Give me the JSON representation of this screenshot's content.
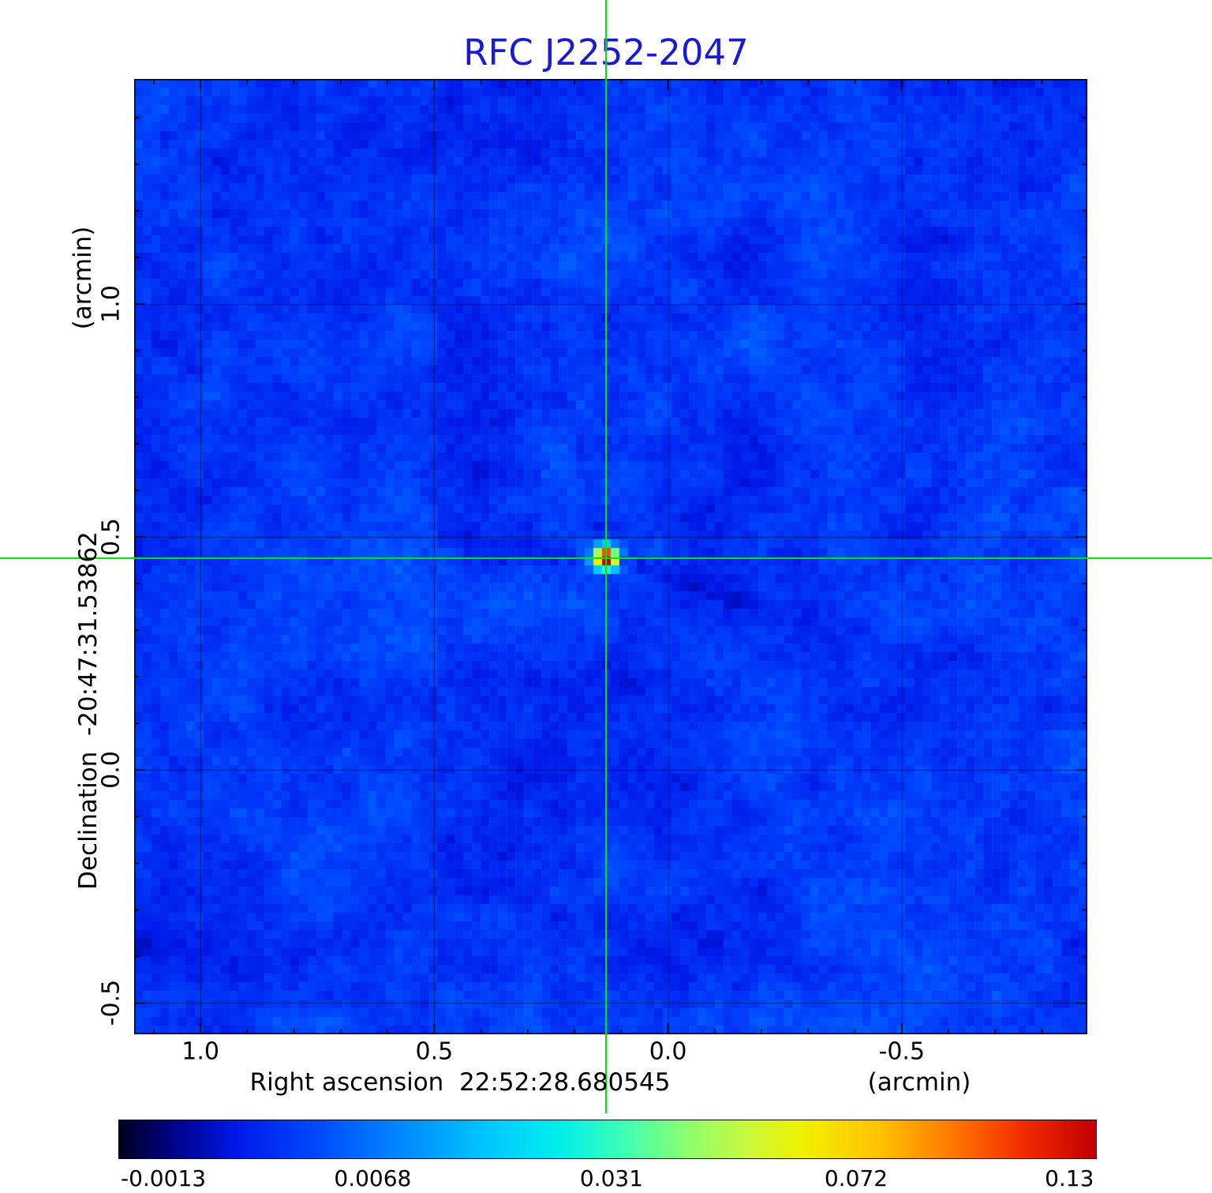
{
  "colors": {
    "title": "#1a1ad2",
    "crosshair": "#00e400",
    "grid": "rgba(0,0,0,0.5)",
    "background": "#ffffff"
  },
  "chart_data": {
    "type": "heatmap",
    "title": "RFC J2252-2047",
    "x_axis": {
      "title": "Right ascension  22:52:28.680545",
      "unit": "(arcmin)",
      "range": [
        1.142,
        -0.897
      ],
      "ticks": [
        1.0,
        0.5,
        0.0,
        -0.5
      ],
      "tick_labels": [
        "1.0",
        "0.5",
        "0.0",
        "-0.5"
      ],
      "minor_tick_step": 0.1
    },
    "y_axis": {
      "title": "Declination  -20:47:31.53862",
      "unit": "(arcmin)",
      "range": [
        1.483,
        -0.567
      ],
      "ticks": [
        1.0,
        0.5,
        0.0,
        -0.5
      ],
      "tick_labels": [
        "1.0",
        "0.5",
        "0.0",
        "-0.5"
      ],
      "minor_tick_step": 0.1
    },
    "source": {
      "name": "RFC J2252-2047",
      "ra": "22:52:28.680545",
      "dec": "-20:47:31.53862",
      "x_arcmin": 0.133,
      "y_arcmin": 0.455,
      "peak_value": 0.13
    },
    "crosshair": {
      "x_arcmin": 0.133,
      "y_arcmin": 0.455
    },
    "colorbar": {
      "tick_labels": [
        "-0.0013",
        "0.0068",
        "0.031",
        "0.072",
        "0.13"
      ],
      "tick_positions": [
        0.046,
        0.26,
        0.504,
        0.754,
        0.972
      ],
      "stops": [
        [
          0.0,
          "#00001e"
        ],
        [
          0.05,
          "#000080"
        ],
        [
          0.12,
          "#0018e8"
        ],
        [
          0.2,
          "#0048ff"
        ],
        [
          0.3,
          "#0090ff"
        ],
        [
          0.38,
          "#00c8ff"
        ],
        [
          0.45,
          "#00eeee"
        ],
        [
          0.52,
          "#40ffb0"
        ],
        [
          0.58,
          "#8cff70"
        ],
        [
          0.64,
          "#c8f840"
        ],
        [
          0.7,
          "#f0f000"
        ],
        [
          0.78,
          "#ffc000"
        ],
        [
          0.86,
          "#ff7000"
        ],
        [
          0.93,
          "#f02800"
        ],
        [
          1.0,
          "#c00000"
        ]
      ]
    },
    "grid": true,
    "noise": {
      "seed": 7,
      "base_level": 0.17,
      "amplitude": 0.07
    }
  }
}
